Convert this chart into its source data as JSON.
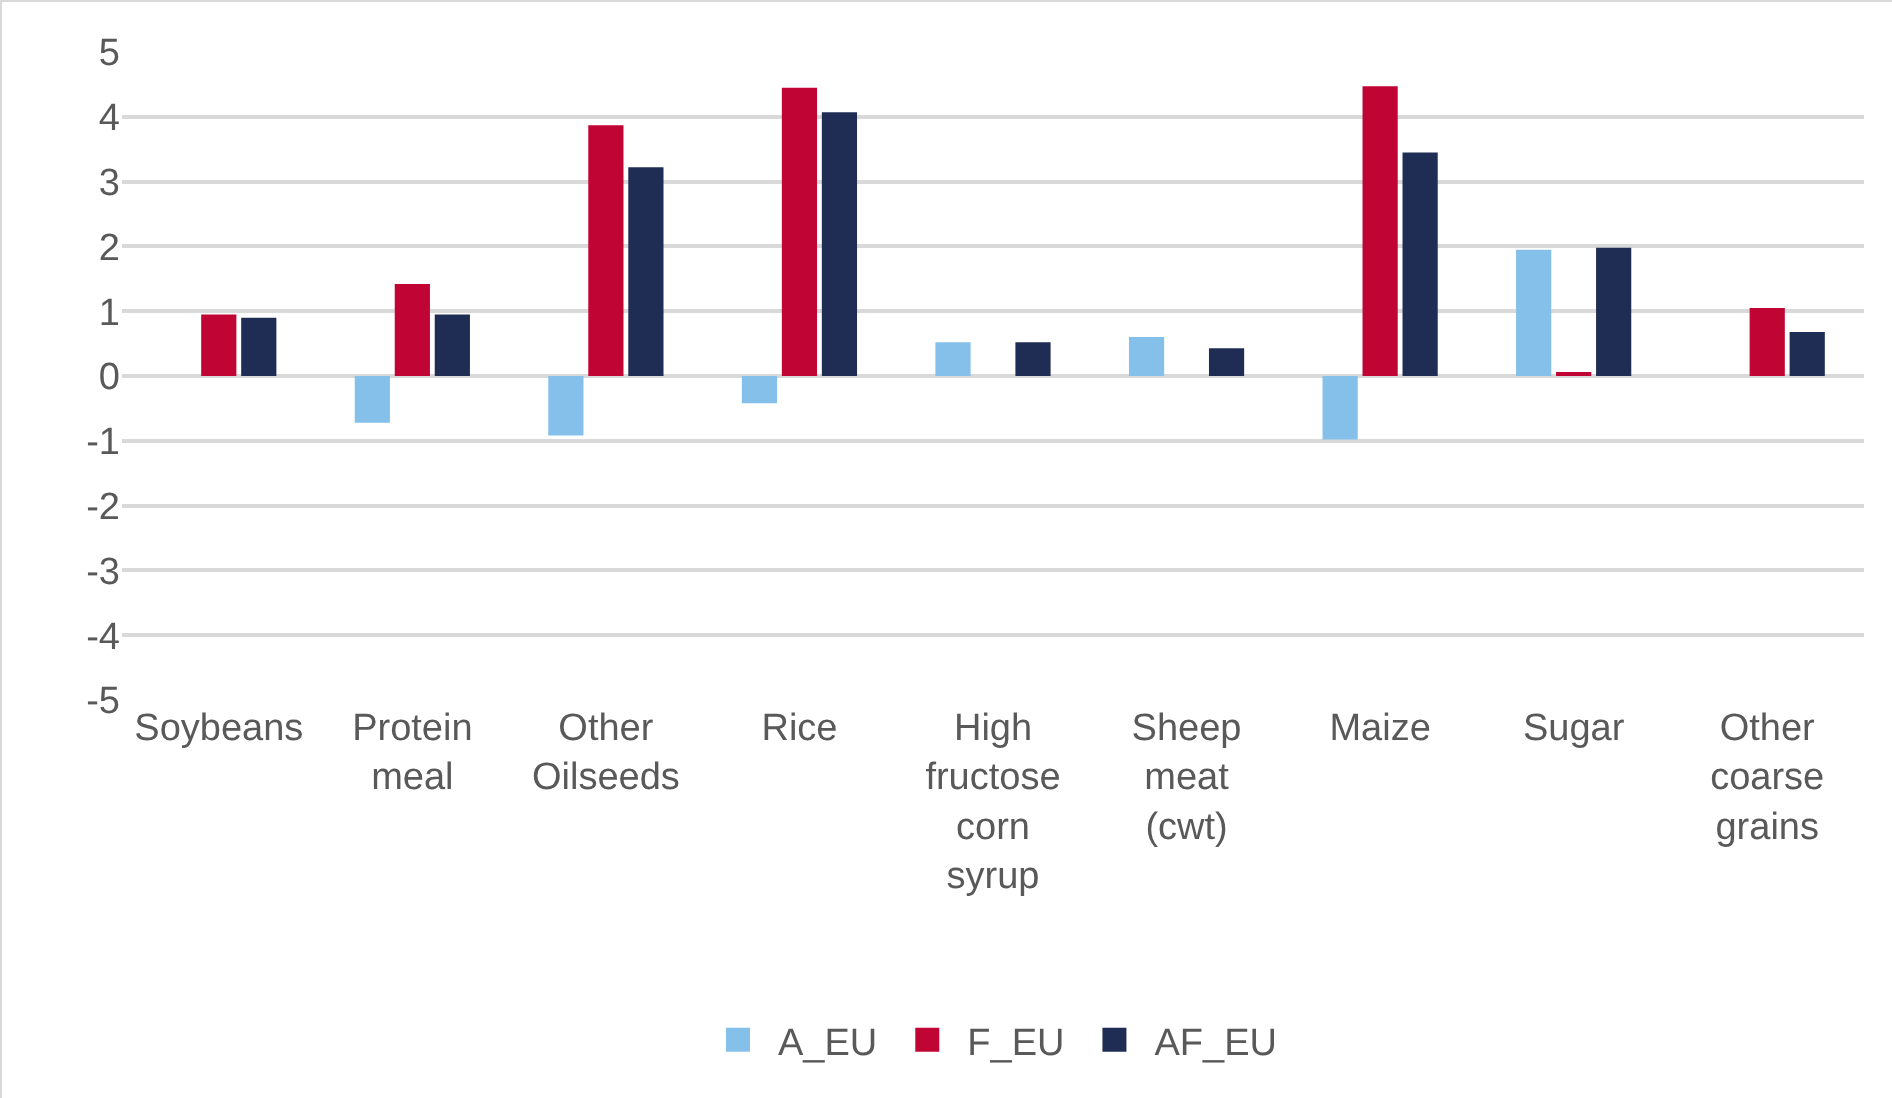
{
  "chart_data": {
    "type": "bar",
    "categories": [
      "Soybeans",
      "Protein meal",
      "Other Oilseeds",
      "Rice",
      "High fructose corn syrup",
      "Sheep meat (cwt)",
      "Maize",
      "Sugar",
      "Other coarse grains"
    ],
    "series": [
      {
        "name": "A_EU",
        "color": "#85c0ea",
        "values": [
          0,
          -0.72,
          -0.92,
          -0.42,
          0.52,
          0.6,
          -0.98,
          1.95,
          0
        ]
      },
      {
        "name": "F_EU",
        "color": "#c00433",
        "values": [
          0.95,
          1.42,
          3.87,
          4.45,
          0,
          0,
          4.47,
          0.05,
          1.05
        ]
      },
      {
        "name": "AF_EU",
        "color": "#1f2d55",
        "values": [
          0.9,
          0.95,
          3.22,
          4.07,
          0.52,
          0.43,
          3.45,
          1.98,
          0.68
        ]
      }
    ],
    "ylim": [
      -5,
      5
    ],
    "yticks": [
      -5,
      -4,
      -3,
      -2,
      -1,
      0,
      1,
      2,
      3,
      4,
      5
    ],
    "grid": "y",
    "legend": "bottom"
  }
}
